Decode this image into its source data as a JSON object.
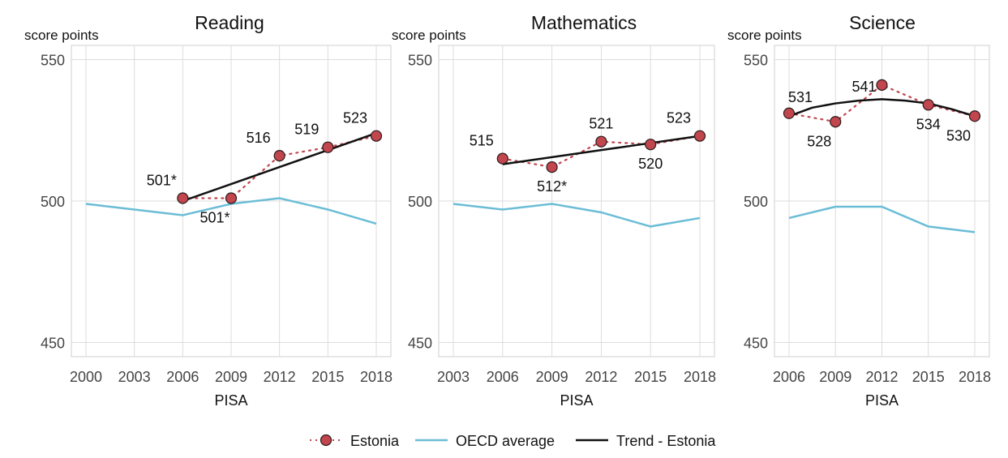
{
  "legend": {
    "items": [
      {
        "label": "Estonia",
        "style": "estonia"
      },
      {
        "label": "OECD average",
        "style": "oecd"
      },
      {
        "label": "Trend - Estonia",
        "style": "trend"
      }
    ]
  },
  "colors": {
    "estonia_fill": "#c1464e",
    "estonia_line": "#c1464e",
    "oecd": "#6bbdd6",
    "trend": "#111111",
    "grid": "#dcdcdc",
    "axis_text": "#444444"
  },
  "chart_data": [
    {
      "type": "line",
      "title": "Reading",
      "ylabel": "score points",
      "xlabel": "PISA",
      "ylim": [
        445,
        555
      ],
      "yticks": [
        450,
        500,
        550
      ],
      "xlim": [
        2000,
        2018
      ],
      "xticks": [
        2000,
        2003,
        2006,
        2009,
        2012,
        2015,
        2018
      ],
      "grid": true,
      "series": [
        {
          "name": "Estonia",
          "x": [
            2006,
            2009,
            2012,
            2015,
            2018
          ],
          "values": [
            501,
            501,
            516,
            519,
            523
          ]
        },
        {
          "name": "OECD average",
          "x": [
            2000,
            2006,
            2009,
            2012,
            2015,
            2018
          ],
          "values": [
            499,
            495,
            499,
            501,
            497,
            492
          ]
        },
        {
          "name": "Trend - Estonia",
          "x": [
            2006,
            2009,
            2012,
            2015,
            2018
          ],
          "values": [
            500,
            506,
            512,
            518,
            524
          ]
        }
      ],
      "data_labels": [
        {
          "x": 2006,
          "y": 501,
          "text": "501*",
          "pos": "above-left"
        },
        {
          "x": 2009,
          "y": 501,
          "text": "501*",
          "pos": "below-left"
        },
        {
          "x": 2012,
          "y": 516,
          "text": "516",
          "pos": "above-left"
        },
        {
          "x": 2015,
          "y": 519,
          "text": "519",
          "pos": "above-left"
        },
        {
          "x": 2018,
          "y": 523,
          "text": "523",
          "pos": "above-left"
        }
      ]
    },
    {
      "type": "line",
      "title": "Mathematics",
      "ylabel": "score points",
      "xlabel": "PISA",
      "ylim": [
        445,
        555
      ],
      "yticks": [
        450,
        500,
        550
      ],
      "xlim": [
        2003,
        2018
      ],
      "xticks": [
        2003,
        2006,
        2009,
        2012,
        2015,
        2018
      ],
      "grid": true,
      "series": [
        {
          "name": "Estonia",
          "x": [
            2006,
            2009,
            2012,
            2015,
            2018
          ],
          "values": [
            515,
            512,
            521,
            520,
            523
          ]
        },
        {
          "name": "OECD average",
          "x": [
            2003,
            2006,
            2009,
            2012,
            2015,
            2018
          ],
          "values": [
            499,
            497,
            499,
            496,
            491,
            494
          ]
        },
        {
          "name": "Trend - Estonia",
          "x": [
            2006,
            2009,
            2012,
            2015,
            2018
          ],
          "values": [
            513,
            515.5,
            518,
            520.5,
            523
          ]
        }
      ],
      "data_labels": [
        {
          "x": 2006,
          "y": 515,
          "text": "515",
          "pos": "above-left"
        },
        {
          "x": 2009,
          "y": 512,
          "text": "512*",
          "pos": "below"
        },
        {
          "x": 2012,
          "y": 521,
          "text": "521",
          "pos": "above"
        },
        {
          "x": 2015,
          "y": 520,
          "text": "520",
          "pos": "below"
        },
        {
          "x": 2018,
          "y": 523,
          "text": "523",
          "pos": "above-left"
        }
      ]
    },
    {
      "type": "line",
      "title": "Science",
      "ylabel": "score points",
      "xlabel": "PISA",
      "ylim": [
        445,
        555
      ],
      "yticks": [
        450,
        500,
        550
      ],
      "xlim": [
        2006,
        2018
      ],
      "xticks": [
        2006,
        2009,
        2012,
        2015,
        2018
      ],
      "grid": true,
      "series": [
        {
          "name": "Estonia",
          "x": [
            2006,
            2009,
            2012,
            2015,
            2018
          ],
          "values": [
            531,
            528,
            541,
            534,
            530
          ]
        },
        {
          "name": "OECD average",
          "x": [
            2006,
            2009,
            2012,
            2015,
            2018
          ],
          "values": [
            494,
            498,
            498,
            491,
            489
          ]
        },
        {
          "name": "Trend - Estonia",
          "x": [
            2006,
            2007.5,
            2009,
            2010.5,
            2012,
            2013.5,
            2015,
            2016.5,
            2018
          ],
          "values": [
            530,
            533,
            534.5,
            535.5,
            536,
            535.5,
            534.5,
            532.5,
            530
          ]
        }
      ],
      "data_labels": [
        {
          "x": 2006,
          "y": 531,
          "text": "531",
          "pos": "above-right"
        },
        {
          "x": 2009,
          "y": 528,
          "text": "528",
          "pos": "below-left"
        },
        {
          "x": 2012,
          "y": 541,
          "text": "541",
          "pos": "left"
        },
        {
          "x": 2015,
          "y": 534,
          "text": "534",
          "pos": "below"
        },
        {
          "x": 2018,
          "y": 530,
          "text": "530",
          "pos": "below-left"
        }
      ]
    }
  ]
}
